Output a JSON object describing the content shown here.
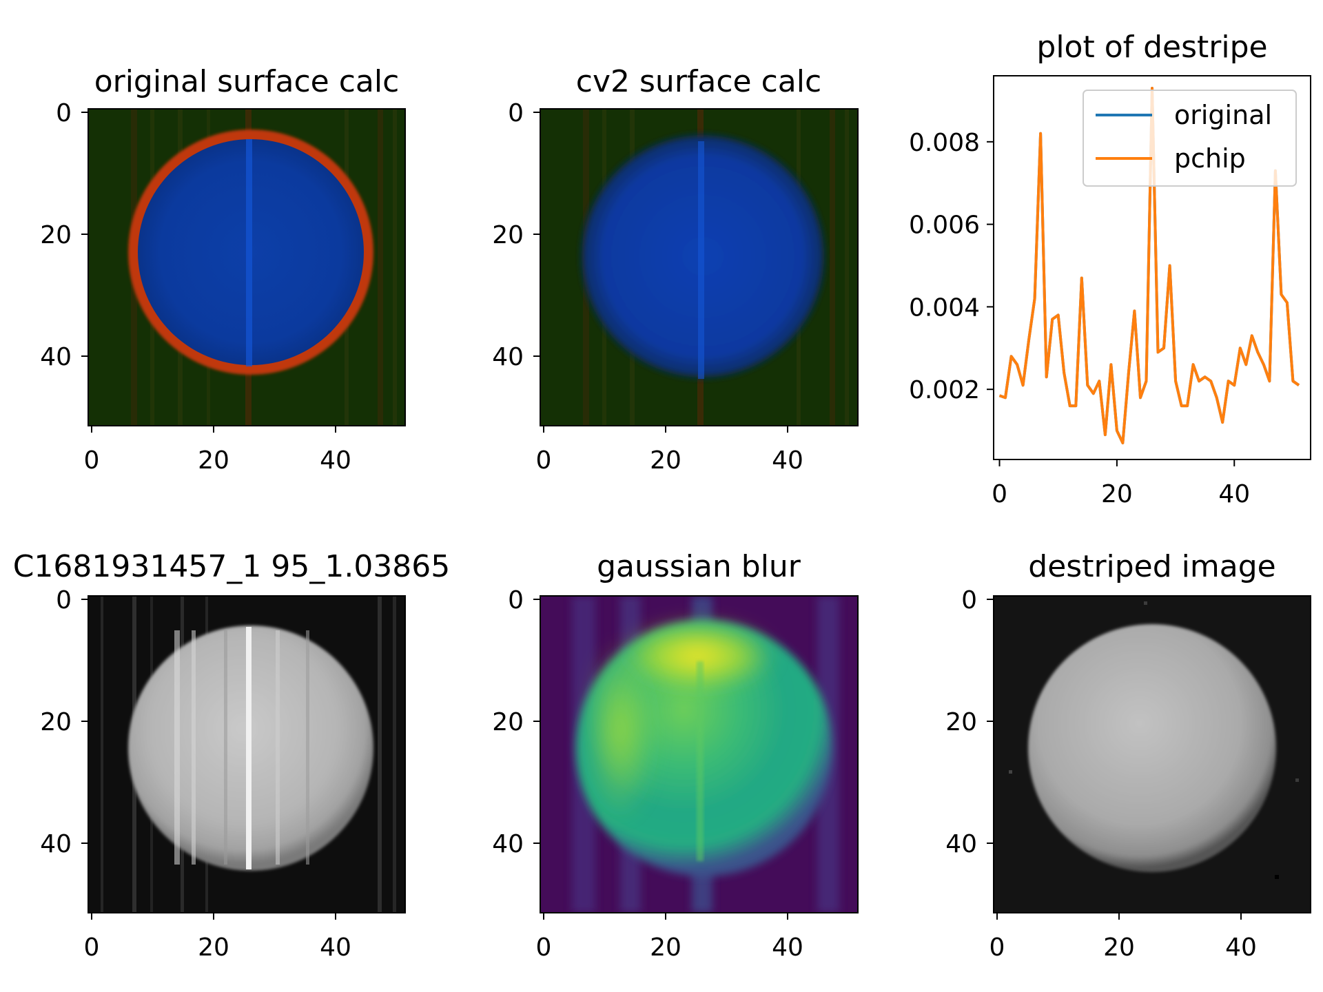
{
  "figure": {
    "colors": {
      "original": "#1f77b4",
      "pchip": "#ff7f0e",
      "background": "#ffffff",
      "axes": "#000000"
    }
  },
  "panels": [
    {
      "id": "original-surface",
      "title": "original surface calc",
      "kind": "image",
      "colormap": "rgb-overlay",
      "xticks": [
        "0",
        "20",
        "40"
      ],
      "yticks": [
        "0",
        "20",
        "40"
      ],
      "xlim": [
        0,
        52
      ],
      "ylim": [
        52,
        0
      ]
    },
    {
      "id": "cv2-surface",
      "title": "cv2 surface calc",
      "kind": "image",
      "colormap": "rgb-overlay",
      "xticks": [
        "0",
        "20",
        "40"
      ],
      "yticks": [
        "0",
        "20",
        "40"
      ],
      "xlim": [
        0,
        52
      ],
      "ylim": [
        52,
        0
      ]
    },
    {
      "id": "plot-destripe",
      "title": "plot of destripe",
      "kind": "line",
      "xticks": [
        "0",
        "20",
        "40"
      ],
      "yticks": [
        "0.002",
        "0.004",
        "0.006",
        "0.008"
      ]
    },
    {
      "id": "raw-image",
      "title": "C1681931457_1 95_1.03865",
      "kind": "image",
      "colormap": "gray",
      "xticks": [
        "0",
        "20",
        "40"
      ],
      "yticks": [
        "0",
        "20",
        "40"
      ],
      "xlim": [
        0,
        52
      ],
      "ylim": [
        52,
        0
      ]
    },
    {
      "id": "gaussian-blur",
      "title": "gaussian blur",
      "kind": "image",
      "colormap": "viridis",
      "xticks": [
        "0",
        "20",
        "40"
      ],
      "yticks": [
        "0",
        "20",
        "40"
      ],
      "xlim": [
        0,
        52
      ],
      "ylim": [
        52,
        0
      ]
    },
    {
      "id": "destriped-image",
      "title": "destriped image",
      "kind": "image",
      "colormap": "gray",
      "xticks": [
        "0",
        "20",
        "40"
      ],
      "yticks": [
        "0",
        "20",
        "40"
      ],
      "xlim": [
        0,
        52
      ],
      "ylim": [
        52,
        0
      ]
    }
  ],
  "chart_data": [
    {
      "type": "line",
      "title": "plot of destripe",
      "xlabel": "",
      "ylabel": "",
      "xlim": [
        -1,
        53
      ],
      "ylim": [
        0.0003,
        0.0096
      ],
      "grid": false,
      "legend": {
        "placement": "top-right",
        "entries": [
          "original",
          "pchip"
        ]
      },
      "x": [
        0,
        1,
        2,
        3,
        4,
        5,
        6,
        7,
        8,
        9,
        10,
        11,
        12,
        13,
        14,
        15,
        16,
        17,
        18,
        19,
        20,
        21,
        22,
        23,
        24,
        25,
        26,
        27,
        28,
        29,
        30,
        31,
        32,
        33,
        34,
        35,
        36,
        37,
        38,
        39,
        40,
        41,
        42,
        43,
        44,
        45,
        46,
        47,
        48,
        49,
        50,
        51
      ],
      "series": [
        {
          "name": "original",
          "color": "#1f77b4",
          "values": [
            0.00185,
            0.0018,
            0.0028,
            0.0026,
            0.0021,
            0.0032,
            0.0042,
            0.0082,
            0.0023,
            0.0037,
            0.0038,
            0.0024,
            0.0016,
            0.0016,
            0.0047,
            0.0021,
            0.0019,
            0.0022,
            0.0009,
            0.0026,
            0.001,
            0.0007,
            0.0024,
            0.0039,
            0.0018,
            0.0022,
            0.0093,
            0.0029,
            0.003,
            0.005,
            0.0022,
            0.0016,
            0.0016,
            0.0026,
            0.0022,
            0.0023,
            0.0022,
            0.0018,
            0.0012,
            0.0022,
            0.0021,
            0.003,
            0.0026,
            0.0033,
            0.0029,
            0.0026,
            0.0022,
            0.0073,
            0.0043,
            0.0041,
            0.0022,
            0.0021
          ]
        },
        {
          "name": "pchip",
          "color": "#ff7f0e",
          "values": [
            0.00185,
            0.0018,
            0.0028,
            0.0026,
            0.0021,
            0.0032,
            0.0042,
            0.0082,
            0.0023,
            0.0037,
            0.0038,
            0.0024,
            0.0016,
            0.0016,
            0.0047,
            0.0021,
            0.0019,
            0.0022,
            0.0009,
            0.0026,
            0.001,
            0.0007,
            0.0024,
            0.0039,
            0.0018,
            0.0022,
            0.0093,
            0.0029,
            0.003,
            0.005,
            0.0022,
            0.0016,
            0.0016,
            0.0026,
            0.0022,
            0.0023,
            0.0022,
            0.0018,
            0.0012,
            0.0022,
            0.0021,
            0.003,
            0.0026,
            0.0033,
            0.0029,
            0.0026,
            0.0022,
            0.0073,
            0.0043,
            0.0041,
            0.0022,
            0.0021
          ]
        }
      ]
    }
  ]
}
